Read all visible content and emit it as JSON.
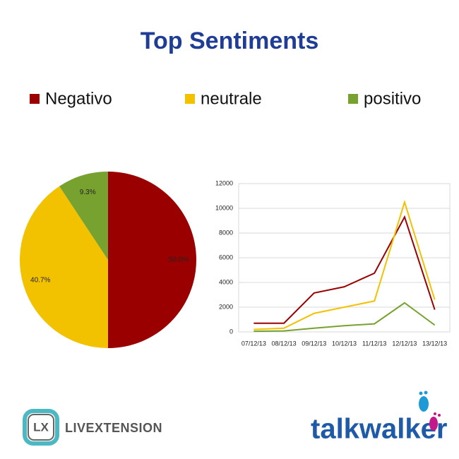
{
  "title": "Top Sentiments",
  "chart_data": [
    {
      "type": "pie",
      "categories": [
        "Negativo",
        "neutrale",
        "positivo"
      ],
      "values": [
        50.0,
        40.7,
        9.3
      ],
      "value_labels": [
        "50.0%",
        "40.7%",
        "9.3%"
      ],
      "colors": [
        "#9b0000",
        "#f2c100",
        "#78a22f"
      ]
    },
    {
      "type": "line",
      "categories": [
        "07/12/13",
        "08/12/13",
        "09/12/13",
        "10/12/13",
        "11/12/13",
        "12/12/13",
        "13/12/13"
      ],
      "series": [
        {
          "name": "Negativo",
          "color": "#9b0000",
          "values": [
            700,
            700,
            3150,
            3650,
            4750,
            9300,
            1800
          ]
        },
        {
          "name": "neutrale",
          "color": "#f2c100",
          "values": [
            200,
            300,
            1500,
            2000,
            2500,
            10500,
            2600
          ]
        },
        {
          "name": "positivo",
          "color": "#78a22f",
          "values": [
            50,
            80,
            300,
            500,
            650,
            2350,
            550
          ]
        }
      ],
      "ylim": [
        0,
        12000
      ],
      "yticks": [
        0,
        2000,
        4000,
        6000,
        8000,
        10000,
        12000
      ],
      "grid": true
    }
  ],
  "logos": {
    "lx": "LX",
    "livextension": "LIVEXTENSION",
    "talkwalker": "talkwalker"
  }
}
